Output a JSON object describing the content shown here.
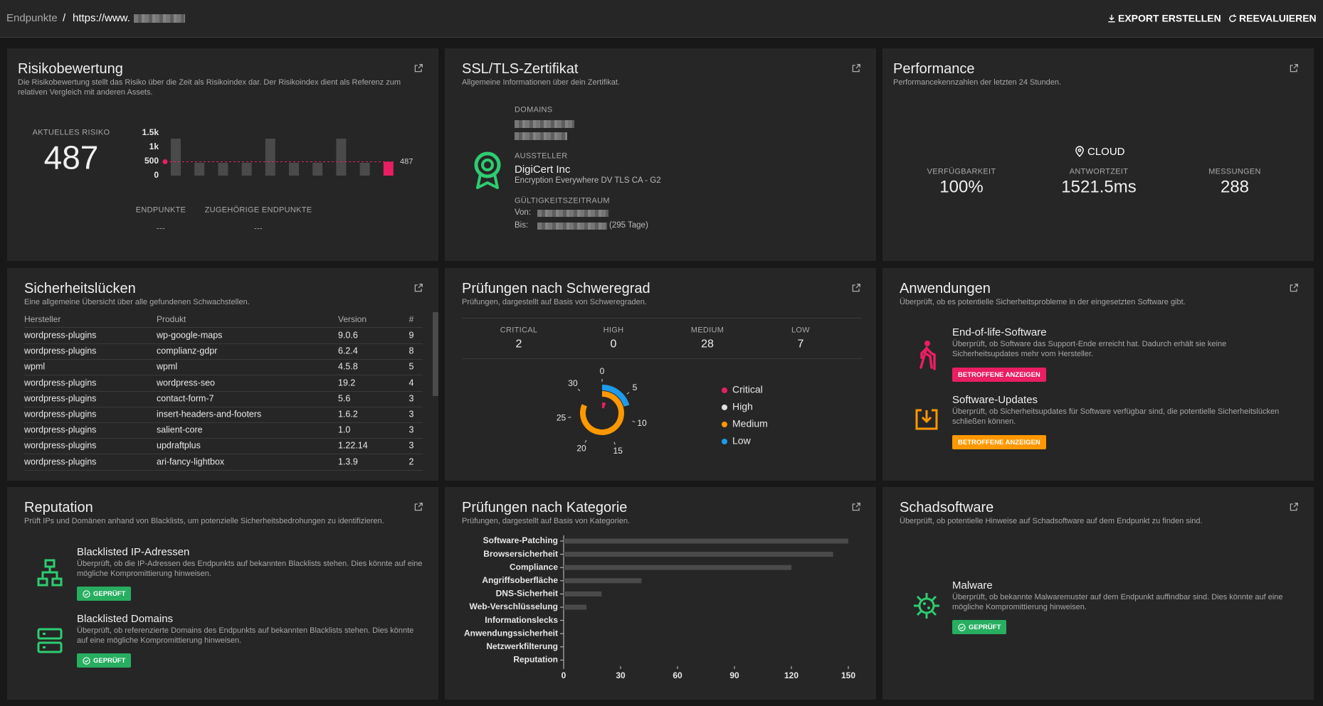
{
  "header": {
    "breadcrumb": "Endpunkte",
    "separator": "/",
    "url": "https://www.",
    "actions": [
      "EXPORT ERSTELLEN",
      "REEVALUIEREN"
    ]
  },
  "risk": {
    "title": "Risikobewertung",
    "description": "Die Risikobewertung stellt das Risiko über die Zeit als Risikoindex dar. Der Risikoindex dient als Referenz zum relativen Vergleich mit anderen Assets.",
    "current_label": "AKTUELLES RISIKO",
    "current_value": 487,
    "stats": [
      {
        "label": "ENDPUNKTE",
        "value": "---"
      },
      {
        "label": "ZUGEHÖRIGE ENDPUNKTE",
        "value": "---"
      }
    ]
  },
  "ssl": {
    "title": "SSL/TLS-Zertifikat",
    "description": "Allgemeine Informationen über dein Zertifikat.",
    "domains_label": "DOMAINS",
    "issuer_label": "AUSSTELLER",
    "issuer": "DigiCert Inc",
    "issuer_ca": "Encryption Everywhere DV TLS CA - G2",
    "validity_label": "GÜLTIGKEITSZEITRAUM",
    "from_label": "Von:",
    "to_label": "Bis:",
    "remaining": "(295 Tage)"
  },
  "performance": {
    "title": "Performance",
    "description": "Performancekennzahlen der letzten 24 Stunden.",
    "location": "CLOUD",
    "metrics": [
      {
        "label": "VERFÜGBARKEIT",
        "value": "100%"
      },
      {
        "label": "ANTWORTZEIT",
        "value": "1521.5ms"
      },
      {
        "label": "MESSUNGEN",
        "value": "288"
      }
    ]
  },
  "vulnerabilities": {
    "title": "Sicherheitslücken",
    "description": "Eine allgemeine Übersicht über alle gefundenen Schwachstellen.",
    "columns": [
      "Hersteller",
      "Produkt",
      "Version",
      "#"
    ],
    "rows": [
      [
        "wordpress-plugins",
        "wp-google-maps",
        "9.0.6",
        9
      ],
      [
        "wordpress-plugins",
        "complianz-gdpr",
        "6.2.4",
        8
      ],
      [
        "wpml",
        "wpml",
        "4.5.8",
        5
      ],
      [
        "wordpress-plugins",
        "wordpress-seo",
        "19.2",
        4
      ],
      [
        "wordpress-plugins",
        "contact-form-7",
        "5.6",
        3
      ],
      [
        "wordpress-plugins",
        "insert-headers-and-footers",
        "1.6.2",
        3
      ],
      [
        "wordpress-plugins",
        "salient-core",
        "1.0",
        3
      ],
      [
        "wordpress-plugins",
        "updraftplus",
        "1.22.14",
        3
      ],
      [
        "wordpress-plugins",
        "ari-fancy-lightbox",
        "1.3.9",
        2
      ]
    ]
  },
  "severity": {
    "title": "Prüfungen nach Schweregrad",
    "description": "Prüfungen, dargestellt auf Basis von Schweregraden.",
    "summary_labels": [
      "CRITICAL",
      "HIGH",
      "MEDIUM",
      "LOW"
    ]
  },
  "applications": {
    "title": "Anwendungen",
    "description": "Überprüft, ob es potentielle Sicherheitsprobleme in der eingesetzten Software gibt.",
    "items": [
      {
        "title": "End-of-life-Software",
        "description": "Überprüft, ob Software das Support-Ende erreicht hat. Dadurch erhält sie keine Sicherheitsupdates mehr vom Hersteller.",
        "button": "BETROFFENE ANZEIGEN"
      },
      {
        "title": "Software-Updates",
        "description": "Überprüft, ob Sicherheitsupdates für Software verfügbar sind, die potentielle Sicherheitslücken schließen können.",
        "button": "BETROFFENE ANZEIGEN"
      }
    ]
  },
  "reputation": {
    "title": "Reputation",
    "description": "Prüft IPs und Domänen anhand von Blacklists, um potenzielle Sicherheitsbedrohungen zu identifizieren.",
    "items": [
      {
        "title": "Blacklisted IP-Adressen",
        "description": "Überprüft, ob die IP-Adressen des Endpunkts auf bekannten Blacklists stehen. Dies könnte auf eine mögliche Kompromittierung hinweisen.",
        "status": "GEPRÜFT"
      },
      {
        "title": "Blacklisted Domains",
        "description": "Überprüft, ob referenzierte Domains des Endpunkts auf bekannten Blacklists stehen. Dies könnte auf eine mögliche Kompromittierung hinweisen.",
        "status": "GEPRÜFT"
      }
    ]
  },
  "category": {
    "title": "Prüfungen nach Kategorie",
    "description": "Prüfungen, dargestellt auf Basis von Kategorien."
  },
  "malware": {
    "title": "Schadsoftware",
    "description": "Überprüft, ob potentielle Hinweise auf Schadsoftware auf dem Endpunkt zu finden sind.",
    "items": [
      {
        "title": "Malware",
        "description": "Überprüft, ob bekannte Malwaremuster auf dem Endpunkt auffindbar sind. Dies könnte auf eine mögliche Kompromittierung hinweisen.",
        "status": "GEPRÜFT"
      }
    ]
  },
  "chart_data": [
    {
      "type": "bar",
      "categories": [
        null,
        null,
        null,
        null,
        null,
        null,
        null,
        null,
        null,
        null
      ],
      "values": [
        1300,
        450,
        450,
        450,
        1300,
        450,
        450,
        1300,
        450,
        487
      ],
      "colors": [
        "#4a4a4a",
        "#4a4a4a",
        "#4a4a4a",
        "#4a4a4a",
        "#4a4a4a",
        "#4a4a4a",
        "#4a4a4a",
        "#4a4a4a",
        "#4a4a4a",
        "#e91e63"
      ],
      "reference_line": {
        "value": 487,
        "color": "#e91e63"
      },
      "ylim": [
        0,
        1500
      ],
      "yticks": [
        0,
        500,
        {
          "value": 1000,
          "label": "1k"
        },
        {
          "value": 1500,
          "label": "1.5k"
        }
      ]
    },
    {
      "type": "radial-bar",
      "categories": [
        "Critical",
        "High",
        "Medium",
        "Low"
      ],
      "values": [
        2,
        0,
        28,
        7
      ],
      "colors": [
        "#e91e63",
        "#e0e0e0",
        "#ff9800",
        "#1e9be9"
      ],
      "xlim": [
        0,
        30
      ],
      "xticks": [
        0,
        5,
        10,
        15,
        20,
        25,
        30
      ]
    },
    {
      "type": "hbar",
      "categories": [
        "Software-Patching",
        "Browsersicherheit",
        "Compliance",
        "Angriffsoberfläche",
        "DNS-Sicherheit",
        "Web-Verschlüsselung",
        "Informationslecks",
        "Anwendungssicherheit",
        "Netzwerkfilterung",
        "Reputation"
      ],
      "values": [
        150,
        142,
        120,
        41,
        20,
        12,
        0,
        0,
        0,
        0
      ],
      "color": "#4a4a4a",
      "xlim": [
        0,
        150
      ],
      "xticks": [
        0,
        30,
        60,
        90,
        120,
        150
      ]
    }
  ]
}
